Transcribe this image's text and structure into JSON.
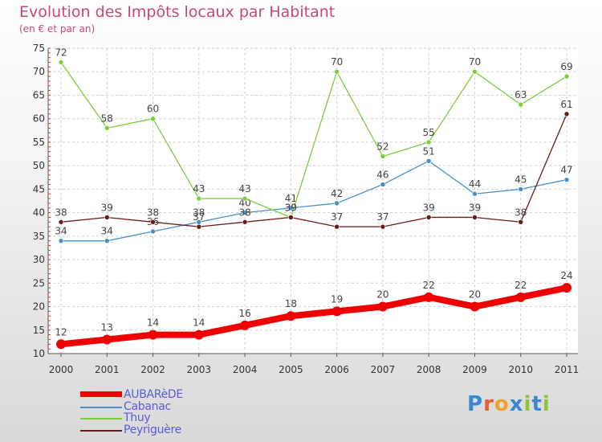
{
  "header": {
    "title": "Evolution des Impôts locaux par Habitant",
    "subtitle": "(en € et par an)"
  },
  "logo": {
    "text": "Proxiti",
    "colors": [
      "#3a87d4",
      "#e8612c",
      "#f0a12a",
      "#3a87d4",
      "#8cc43c",
      "#3a87d4",
      "#8cc43c"
    ]
  },
  "chart_data": {
    "type": "line",
    "x": [
      "2000",
      "2001",
      "2002",
      "2003",
      "2004",
      "2005",
      "2006",
      "2007",
      "2008",
      "2009",
      "2010",
      "2011"
    ],
    "ylim": [
      10,
      75
    ],
    "yticks": [
      "10",
      "15",
      "20",
      "25",
      "30",
      "35",
      "40",
      "45",
      "50",
      "55",
      "60",
      "65",
      "70",
      "75"
    ],
    "grid": true,
    "legend_position": "bottom-left",
    "series": [
      {
        "name": "AUBARèDE",
        "color": "#ee0000",
        "values": [
          12,
          13,
          14,
          14,
          16,
          18,
          19,
          20,
          22,
          20,
          22,
          24
        ],
        "labels": [
          "12",
          "13",
          "14",
          "14",
          "16",
          "18",
          "19",
          "20",
          "22",
          "20",
          "22",
          "24"
        ],
        "bold": true
      },
      {
        "name": "Cabanac",
        "color": "#4a90c8",
        "values": [
          34,
          34,
          36,
          38,
          40,
          41,
          42,
          46,
          51,
          44,
          45,
          47
        ],
        "labels": [
          "34",
          "34",
          "36",
          "38",
          "40",
          "41",
          "42",
          "46",
          "51",
          "44",
          "45",
          "47"
        ]
      },
      {
        "name": "Thuy",
        "color": "#7ccd3c",
        "values": [
          72,
          58,
          60,
          43,
          43,
          39,
          70,
          52,
          55,
          70,
          63,
          69
        ],
        "labels": [
          "72",
          "58",
          "60",
          "43",
          "43",
          "39",
          "70",
          "52",
          "55",
          "70",
          "63",
          "69"
        ]
      },
      {
        "name": "Peyriguère",
        "color": "#6b1a1a",
        "values": [
          38,
          39,
          38,
          37,
          38,
          39,
          37,
          37,
          39,
          39,
          38,
          61
        ],
        "labels": [
          "38",
          "39",
          "38",
          "37",
          "38",
          "39",
          "37",
          "37",
          "39",
          "39",
          "38",
          "61"
        ]
      }
    ]
  }
}
